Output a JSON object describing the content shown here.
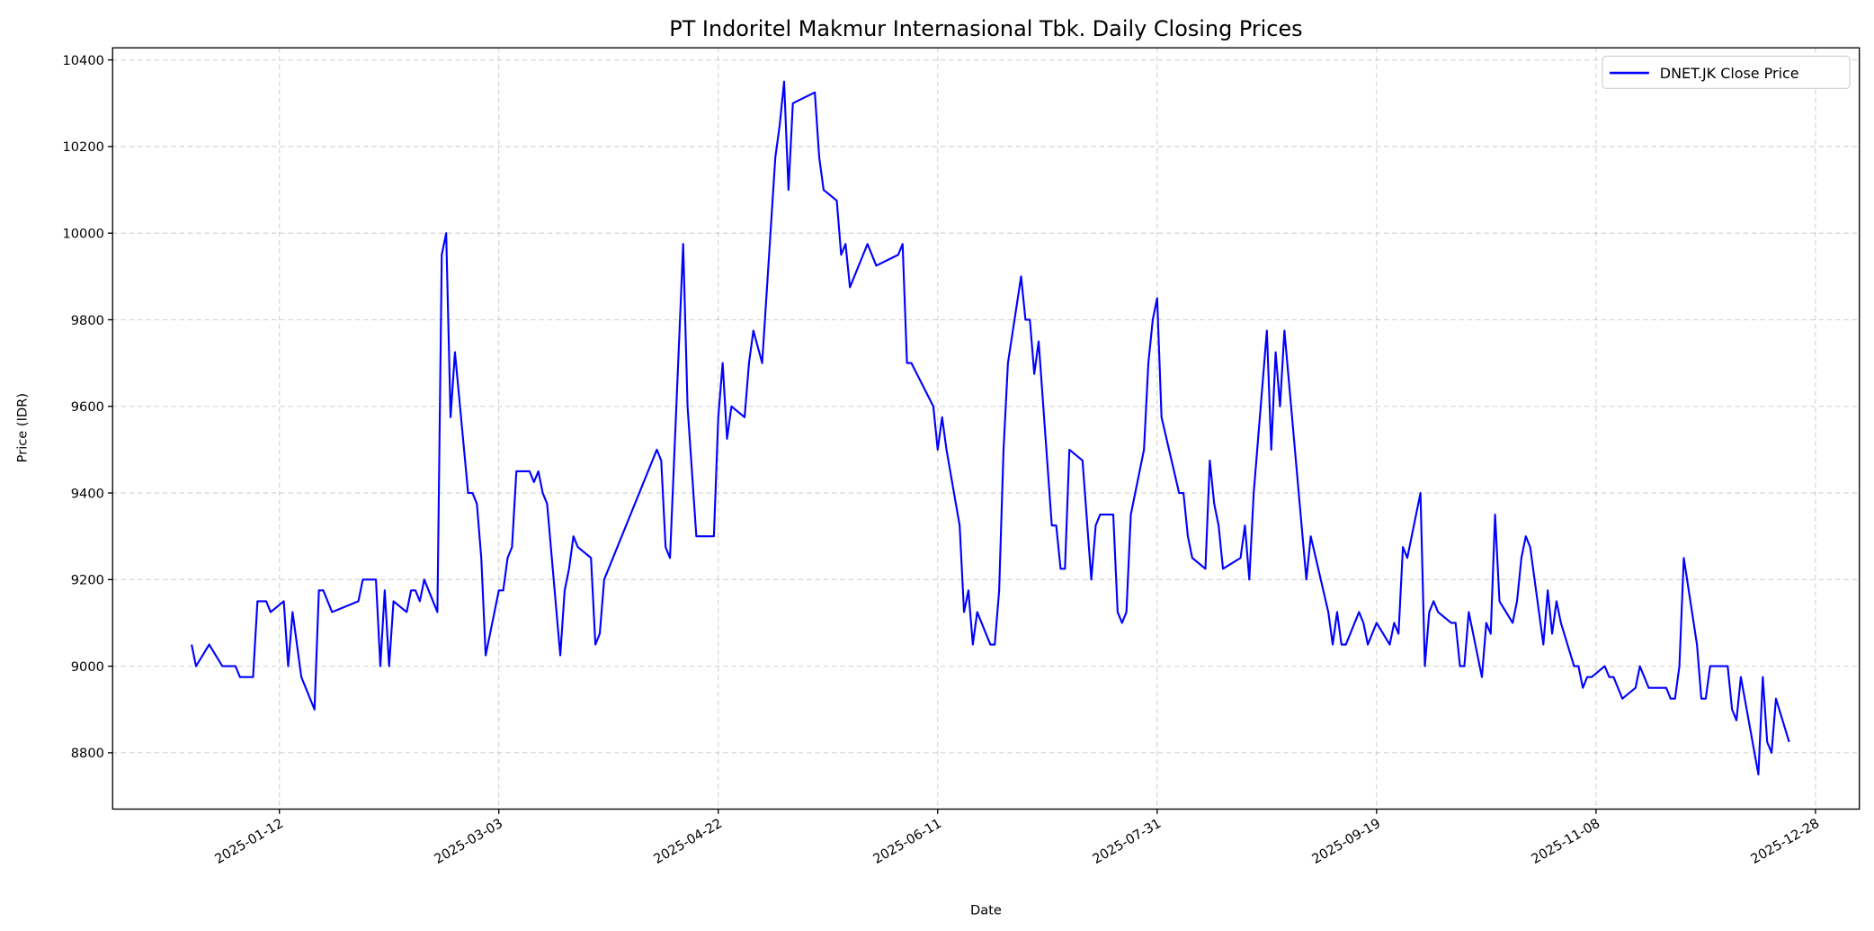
{
  "chart_data": {
    "type": "line",
    "title": "PT Indoritel Makmur Internasional Tbk. Daily Closing Prices",
    "xlabel": "Date",
    "ylabel": "Price (IDR)",
    "xlim": [
      "2024-12-05",
      "2026-01-07"
    ],
    "ylim": [
      8670,
      10428
    ],
    "x_ticks": [
      "2025-01-12",
      "2025-03-03",
      "2025-04-22",
      "2025-06-11",
      "2025-07-31",
      "2025-09-19",
      "2025-11-08",
      "2025-12-28"
    ],
    "y_ticks": [
      8800,
      9000,
      9200,
      9400,
      9600,
      9800,
      10000,
      10200,
      10400
    ],
    "grid": true,
    "legend": "top-right",
    "series": [
      {
        "name": "DNET.JK Close Price",
        "color": "#0000ff",
        "x": [
          "2024-12-23",
          "2024-12-24",
          "2024-12-27",
          "2024-12-30",
          "2025-01-02",
          "2025-01-03",
          "2025-01-06",
          "2025-01-07",
          "2025-01-09",
          "2025-01-10",
          "2025-01-13",
          "2025-01-14",
          "2025-01-15",
          "2025-01-17",
          "2025-01-20",
          "2025-01-21",
          "2025-01-22",
          "2025-01-24",
          "2025-01-30",
          "2025-01-31",
          "2025-02-03",
          "2025-02-04",
          "2025-02-05",
          "2025-02-06",
          "2025-02-07",
          "2025-02-10",
          "2025-02-11",
          "2025-02-12",
          "2025-02-13",
          "2025-02-14",
          "2025-02-17",
          "2025-02-18",
          "2025-02-19",
          "2025-02-20",
          "2025-02-21",
          "2025-02-24",
          "2025-02-25",
          "2025-02-26",
          "2025-02-27",
          "2025-02-28",
          "2025-03-03",
          "2025-03-04",
          "2025-03-05",
          "2025-03-06",
          "2025-03-07",
          "2025-03-10",
          "2025-03-11",
          "2025-03-12",
          "2025-03-13",
          "2025-03-14",
          "2025-03-17",
          "2025-03-18",
          "2025-03-19",
          "2025-03-20",
          "2025-03-21",
          "2025-03-24",
          "2025-03-25",
          "2025-03-26",
          "2025-03-27",
          "2025-04-08",
          "2025-04-09",
          "2025-04-10",
          "2025-04-11",
          "2025-04-14",
          "2025-04-15",
          "2025-04-17",
          "2025-04-21",
          "2025-04-22",
          "2025-04-23",
          "2025-04-24",
          "2025-04-25",
          "2025-04-28",
          "2025-04-29",
          "2025-04-30",
          "2025-05-02",
          "2025-05-05",
          "2025-05-06",
          "2025-05-07",
          "2025-05-08",
          "2025-05-09",
          "2025-05-14",
          "2025-05-15",
          "2025-05-16",
          "2025-05-19",
          "2025-05-20",
          "2025-05-21",
          "2025-05-22",
          "2025-05-26",
          "2025-05-28",
          "2025-06-02",
          "2025-06-03",
          "2025-06-04",
          "2025-06-05",
          "2025-06-10",
          "2025-06-11",
          "2025-06-12",
          "2025-06-13",
          "2025-06-16",
          "2025-06-17",
          "2025-06-18",
          "2025-06-19",
          "2025-06-20",
          "2025-06-23",
          "2025-06-24",
          "2025-06-25",
          "2025-06-26",
          "2025-06-27",
          "2025-06-30",
          "2025-07-01",
          "2025-07-02",
          "2025-07-03",
          "2025-07-04",
          "2025-07-07",
          "2025-07-08",
          "2025-07-09",
          "2025-07-10",
          "2025-07-11",
          "2025-07-14",
          "2025-07-16",
          "2025-07-17",
          "2025-07-18",
          "2025-07-21",
          "2025-07-22",
          "2025-07-23",
          "2025-07-24",
          "2025-07-25",
          "2025-07-28",
          "2025-07-29",
          "2025-07-30",
          "2025-07-31",
          "2025-08-01",
          "2025-08-05",
          "2025-08-06",
          "2025-08-07",
          "2025-08-08",
          "2025-08-11",
          "2025-08-12",
          "2025-08-13",
          "2025-08-14",
          "2025-08-15",
          "2025-08-19",
          "2025-08-20",
          "2025-08-21",
          "2025-08-22",
          "2025-08-25",
          "2025-08-26",
          "2025-08-27",
          "2025-08-28",
          "2025-08-29",
          "2025-09-03",
          "2025-09-04",
          "2025-09-08",
          "2025-09-09",
          "2025-09-10",
          "2025-09-11",
          "2025-09-12",
          "2025-09-15",
          "2025-09-16",
          "2025-09-17",
          "2025-09-19",
          "2025-09-22",
          "2025-09-23",
          "2025-09-24",
          "2025-09-25",
          "2025-09-26",
          "2025-09-29",
          "2025-09-30",
          "2025-10-01",
          "2025-10-02",
          "2025-10-03",
          "2025-10-06",
          "2025-10-07",
          "2025-10-08",
          "2025-10-09",
          "2025-10-10",
          "2025-10-13",
          "2025-10-14",
          "2025-10-15",
          "2025-10-16",
          "2025-10-17",
          "2025-10-20",
          "2025-10-21",
          "2025-10-22",
          "2025-10-23",
          "2025-10-24",
          "2025-10-27",
          "2025-10-28",
          "2025-10-29",
          "2025-10-30",
          "2025-10-31",
          "2025-11-03",
          "2025-11-04",
          "2025-11-05",
          "2025-11-06",
          "2025-11-07",
          "2025-11-10",
          "2025-11-11",
          "2025-11-12",
          "2025-11-14",
          "2025-11-17",
          "2025-11-18",
          "2025-11-20",
          "2025-11-24",
          "2025-11-25",
          "2025-11-26",
          "2025-11-27",
          "2025-11-28",
          "2025-12-01",
          "2025-12-02",
          "2025-12-03",
          "2025-12-04",
          "2025-12-08",
          "2025-12-09",
          "2025-12-10",
          "2025-12-11",
          "2025-12-15",
          "2025-12-16",
          "2025-12-17",
          "2025-12-18",
          "2025-12-19",
          "2025-12-22"
        ],
        "y": [
          9050,
          9000,
          9050,
          9000,
          9000,
          8975,
          8975,
          9150,
          9150,
          9125,
          9150,
          9000,
          9125,
          8975,
          8900,
          9175,
          9175,
          9125,
          9150,
          9200,
          9200,
          9000,
          9175,
          9000,
          9150,
          9125,
          9175,
          9175,
          9150,
          9200,
          9125,
          9950,
          10000,
          9575,
          9725,
          9400,
          9400,
          9375,
          9250,
          9025,
          9175,
          9175,
          9250,
          9275,
          9450,
          9450,
          9425,
          9450,
          9400,
          9375,
          9025,
          9175,
          9225,
          9300,
          9275,
          9250,
          9050,
          9075,
          9200,
          9500,
          9475,
          9275,
          9250,
          9975,
          9600,
          9300,
          9300,
          9575,
          9700,
          9525,
          9600,
          9575,
          9700,
          9775,
          9700,
          10175,
          10250,
          10350,
          10100,
          10300,
          10325,
          10175,
          10100,
          10075,
          9950,
          9975,
          9875,
          9975,
          9925,
          9950,
          9975,
          9700,
          9700,
          9600,
          9500,
          9575,
          9500,
          9325,
          9125,
          9175,
          9050,
          9125,
          9050,
          9050,
          9175,
          9500,
          9700,
          9900,
          9800,
          9800,
          9675,
          9750,
          9325,
          9325,
          9225,
          9225,
          9500,
          9475,
          9200,
          9325,
          9350,
          9350,
          9125,
          9100,
          9125,
          9350,
          9500,
          9700,
          9800,
          9850,
          9575,
          9400,
          9400,
          9300,
          9250,
          9225,
          9475,
          9375,
          9325,
          9225,
          9250,
          9325,
          9200,
          9400,
          9775,
          9500,
          9725,
          9600,
          9775,
          9200,
          9300,
          9125,
          9050,
          9125,
          9050,
          9050,
          9125,
          9100,
          9050,
          9100,
          9050,
          9100,
          9075,
          9275,
          9250,
          9400,
          9000,
          9125,
          9150,
          9125,
          9100,
          9100,
          9000,
          9000,
          9125,
          8975,
          9100,
          9075,
          9350,
          9150,
          9100,
          9150,
          9250,
          9300,
          9275,
          9050,
          9175,
          9075,
          9150,
          9100,
          9000,
          9000,
          8950,
          8975,
          8975,
          9000,
          8975,
          8975,
          8925,
          8950,
          9000,
          8950,
          8950,
          8925,
          8925,
          9000,
          9250,
          9050,
          8925,
          8925,
          9000,
          9000,
          8900,
          8875,
          8975,
          8750,
          8975,
          8825,
          8800,
          8925,
          8825
        ]
      }
    ]
  }
}
